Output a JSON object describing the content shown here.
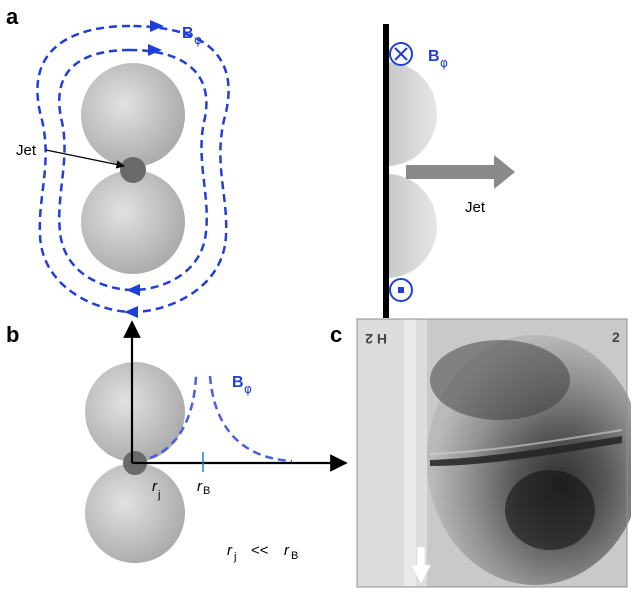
{
  "panels": {
    "a": "a",
    "b": "b",
    "c": "c"
  },
  "field_label": {
    "main": "B",
    "sub": "φ"
  },
  "jet_label": "Jet",
  "radius_labels": {
    "r": "r",
    "j_sub": "j",
    "B_sub": "B",
    "relation_op": "<<"
  },
  "plate_marks": {
    "top_left": "H 2",
    "top_right": "2"
  },
  "colors": {
    "field": "#1f3fd6",
    "lobe": "#c4c4c4",
    "jet_core": "#6a6a6a",
    "arrow": "#8a8a8a"
  }
}
